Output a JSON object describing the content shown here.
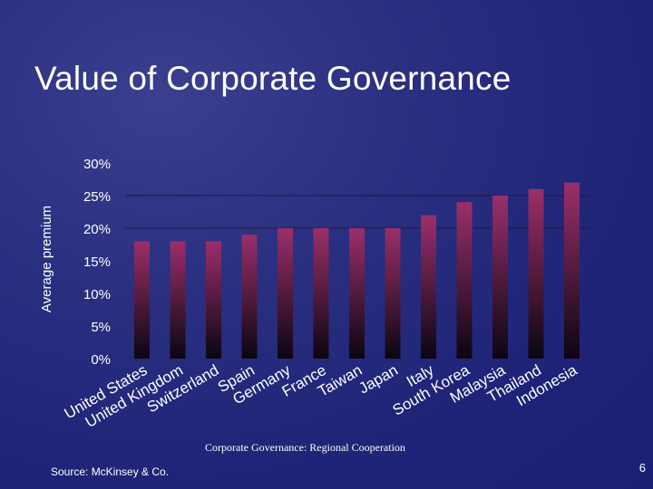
{
  "slide": {
    "title": "Value of Corporate Governance",
    "footer": "Corporate Governance: Regional Cooperation",
    "source": "Source: McKinsey & Co.",
    "page_number": "6"
  },
  "colors": {
    "bar_top": "#9b2f6a",
    "bar_bottom": "#0a0612",
    "gridline": "#1b1b3a",
    "text": "#ffffff"
  },
  "chart_data": {
    "type": "bar",
    "title": "",
    "xlabel": "",
    "ylabel": "Average premium",
    "ylim": [
      0,
      30
    ],
    "yticks": [
      0,
      5,
      10,
      15,
      20,
      25,
      30
    ],
    "ytick_labels": [
      "0%",
      "5%",
      "10%",
      "15%",
      "20%",
      "25%",
      "30%"
    ],
    "gridlines_at": [
      25,
      20
    ],
    "categories": [
      "United States",
      "United Kingdom",
      "Switzerland",
      "Spain",
      "Germany",
      "France",
      "Taiwan",
      "Japan",
      "Italy",
      "South Korea",
      "Malaysia",
      "Thailand",
      "Indonesia"
    ],
    "values": [
      18,
      18,
      18,
      19,
      20,
      20,
      20,
      20,
      22,
      24,
      25,
      26,
      27
    ]
  }
}
